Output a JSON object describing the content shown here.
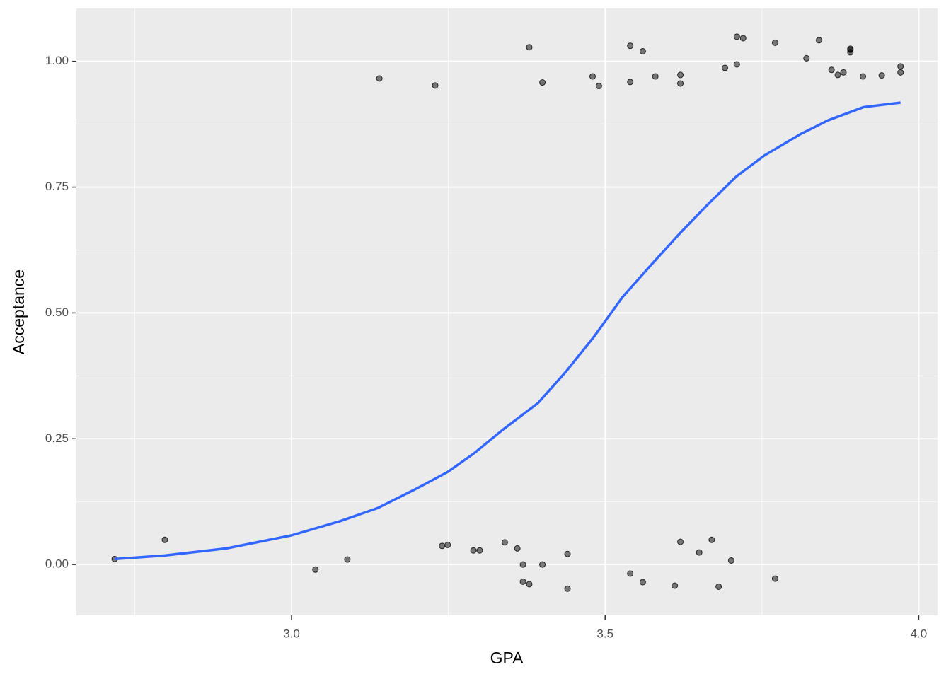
{
  "chart_data": {
    "type": "scatter",
    "xlabel": "GPA",
    "ylabel": "Acceptance",
    "xlim": [
      2.657,
      4.03
    ],
    "ylim": [
      -0.101,
      1.105
    ],
    "xticks": [
      {
        "value": 3.0,
        "label": "3.0"
      },
      3.5,
      {
        "value": 4.0,
        "label": "4.0"
      }
    ],
    "yticks": [
      {
        "value": 0,
        "label": "0.00"
      },
      {
        "value": 0.25,
        "label": "0.25"
      },
      {
        "value": 0.5,
        "label": "0.50"
      },
      {
        "value": 0.75,
        "label": "0.75"
      },
      {
        "value": 1,
        "label": "1.00"
      }
    ],
    "xminorticks": [
      2.75,
      3.25,
      3.75
    ],
    "yminorticks": [
      -0.125,
      0.125,
      0.375,
      0.625,
      0.875
    ],
    "grid": true,
    "series": [
      {
        "type": "scatter",
        "color": "#000000",
        "x": [
          2.718,
          2.798,
          3.038,
          3.089,
          3.14,
          3.229,
          3.24,
          3.249,
          3.29,
          3.3,
          3.34,
          3.36,
          3.369,
          3.369,
          3.379,
          3.4,
          3.379,
          3.4,
          3.44,
          3.44,
          3.48,
          3.49,
          3.54,
          3.54,
          3.54,
          3.56,
          3.56,
          3.58,
          3.611,
          3.62,
          3.62,
          3.62,
          3.65,
          3.67,
          3.681,
          3.691,
          3.701,
          3.71,
          3.71,
          3.72,
          3.771,
          3.771,
          3.821,
          3.841,
          3.861,
          3.871,
          3.88,
          3.891,
          3.891,
          3.891,
          3.911,
          3.941,
          3.971,
          3.971
        ],
        "values": [
          0.011,
          0.049,
          -0.01,
          0.01,
          0.966,
          0.952,
          0.037,
          0.039,
          0.028,
          0.028,
          0.044,
          0.032,
          0,
          -0.034,
          -0.039,
          0,
          1.028,
          0.958,
          0.021,
          -0.048,
          0.97,
          0.951,
          1.031,
          0.959,
          -0.018,
          1.02,
          -0.035,
          0.97,
          -0.042,
          0.973,
          0.956,
          0.045,
          0.024,
          0.049,
          -0.044,
          0.987,
          0.008,
          0.994,
          1.049,
          1.046,
          1.037,
          -0.028,
          1.006,
          1.042,
          0.983,
          0.973,
          0.978,
          1.023,
          1.018,
          1.025,
          0.97,
          0.972,
          0.99,
          0.978
        ]
      },
      {
        "type": "line",
        "color": "#3366ff",
        "x": [
          2.718,
          2.798,
          2.896,
          3.0,
          3.077,
          3.137,
          3.201,
          3.249,
          3.291,
          3.336,
          3.393,
          3.438,
          3.483,
          3.528,
          3.573,
          3.619,
          3.664,
          3.709,
          3.754,
          3.811,
          3.856,
          3.912,
          3.971
        ],
        "values": [
          0.011,
          0.018,
          0.032,
          0.058,
          0.086,
          0.112,
          0.152,
          0.184,
          0.221,
          0.267,
          0.321,
          0.384,
          0.454,
          0.532,
          0.595,
          0.658,
          0.716,
          0.771,
          0.813,
          0.855,
          0.883,
          0.909,
          0.918
        ]
      }
    ]
  }
}
